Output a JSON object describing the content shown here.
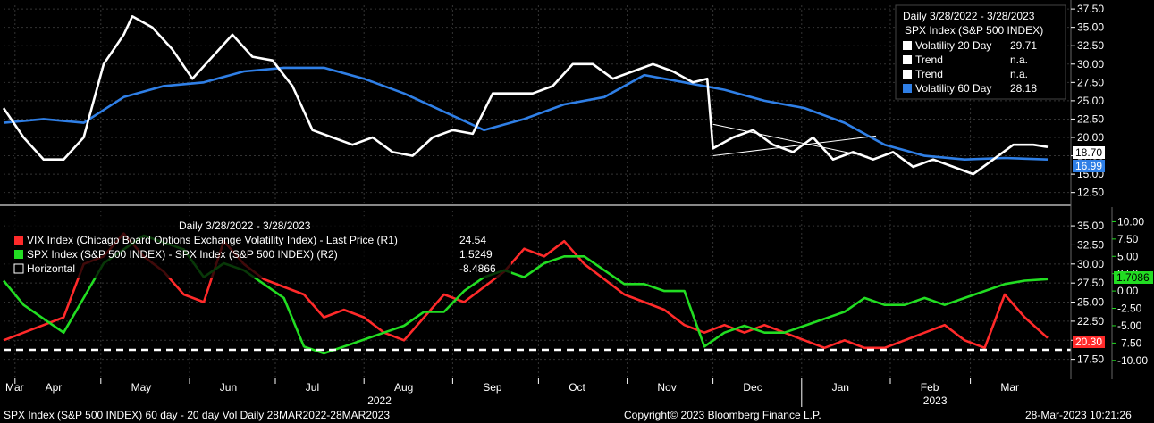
{
  "top_panel": {
    "legend": {
      "period": "Daily 3/28/2022 - 3/28/2023",
      "security": "SPX Index (S&P 500 INDEX)",
      "items": [
        {
          "label": "Volatility 20 Day",
          "value": "29.71",
          "color": "#ffffff"
        },
        {
          "label": "Trend",
          "value": "n.a.",
          "color": "#ffffff"
        },
        {
          "label": "Trend",
          "value": "n.a.",
          "color": "#ffffff"
        },
        {
          "label": "Volatility 60 Day",
          "value": "28.18",
          "color": "#2f7fe6"
        }
      ]
    },
    "last_labels": [
      {
        "text": "18.70",
        "color": "#ffffff"
      },
      {
        "text": "16.99",
        "color": "#2f7fe6"
      }
    ]
  },
  "bottom_panel": {
    "legend": {
      "period": "Daily 3/28/2022 - 3/28/2023",
      "items": [
        {
          "label": "VIX Index (Chicago Board Options Exchange Volatility Index) - Last Price (R1)",
          "value": "24.54",
          "color": "#ff2a2a"
        },
        {
          "label": "SPX Index (S&P 500 INDEX) - SPX Index (S&P 500 INDEX) (R2)",
          "value": "1.5249",
          "color": "#22dd22"
        },
        {
          "label": "Horizontal",
          "value": "-8.4866",
          "color": "#ffffff"
        }
      ]
    },
    "last_labels": [
      {
        "text": "1.7086",
        "color": "#22dd22"
      },
      {
        "text": "20.30",
        "color": "#ff2a2a"
      }
    ]
  },
  "x_axis": {
    "months": [
      "Mar",
      "Apr",
      "May",
      "Jun",
      "Jul",
      "Aug",
      "Sep",
      "Oct",
      "Nov",
      "Dec",
      "Jan",
      "Feb",
      "Mar"
    ],
    "years": [
      "2022",
      "2023"
    ]
  },
  "footer": {
    "left": "SPX Index (S&P 500 INDEX) 60 day - 20 day Vol  Daily 28MAR2022-28MAR2023",
    "center": "Copyright© 2023 Bloomberg Finance L.P.",
    "right": "28-Mar-2023 10:21:26"
  },
  "chart_data": [
    {
      "type": "line",
      "x_range": [
        "2022-03-28",
        "2023-03-28"
      ],
      "ylim": [
        11,
        38
      ],
      "yticks": [
        12.5,
        15,
        17.5,
        20,
        22.5,
        25,
        27.5,
        30,
        32.5,
        35,
        37.5
      ],
      "trendlines": [
        {
          "from": [
            "2022-12-01",
            17.5
          ],
          "to": [
            "2023-01-27",
            20.2
          ]
        },
        {
          "from": [
            "2022-12-01",
            21.8
          ],
          "to": [
            "2023-01-20",
            17.7
          ]
        }
      ],
      "series": [
        {
          "name": "Volatility 20 Day",
          "color": "#ffffff",
          "points": [
            [
              "2022-03-28",
              24
            ],
            [
              "2022-04-04",
              20
            ],
            [
              "2022-04-11",
              17
            ],
            [
              "2022-04-18",
              17
            ],
            [
              "2022-04-25",
              20
            ],
            [
              "2022-05-02",
              30
            ],
            [
              "2022-05-09",
              34
            ],
            [
              "2022-05-12",
              36.5
            ],
            [
              "2022-05-19",
              35
            ],
            [
              "2022-05-26",
              32
            ],
            [
              "2022-06-02",
              28
            ],
            [
              "2022-06-09",
              31
            ],
            [
              "2022-06-16",
              34
            ],
            [
              "2022-06-23",
              31
            ],
            [
              "2022-06-30",
              30.5
            ],
            [
              "2022-07-07",
              27
            ],
            [
              "2022-07-14",
              21
            ],
            [
              "2022-07-21",
              20
            ],
            [
              "2022-07-28",
              19
            ],
            [
              "2022-08-04",
              20
            ],
            [
              "2022-08-11",
              18
            ],
            [
              "2022-08-18",
              17.5
            ],
            [
              "2022-08-25",
              20
            ],
            [
              "2022-09-01",
              21
            ],
            [
              "2022-09-08",
              20.5
            ],
            [
              "2022-09-15",
              26
            ],
            [
              "2022-09-22",
              26
            ],
            [
              "2022-09-29",
              26
            ],
            [
              "2022-10-06",
              27
            ],
            [
              "2022-10-13",
              30
            ],
            [
              "2022-10-20",
              30
            ],
            [
              "2022-10-27",
              28
            ],
            [
              "2022-11-03",
              29
            ],
            [
              "2022-11-10",
              30
            ],
            [
              "2022-11-17",
              29
            ],
            [
              "2022-11-24",
              27.5
            ],
            [
              "2022-11-29",
              28
            ],
            [
              "2022-12-01",
              18.5
            ],
            [
              "2022-12-08",
              20
            ],
            [
              "2022-12-15",
              21
            ],
            [
              "2022-12-22",
              19
            ],
            [
              "2022-12-29",
              18
            ],
            [
              "2023-01-05",
              20
            ],
            [
              "2023-01-12",
              17
            ],
            [
              "2023-01-19",
              18
            ],
            [
              "2023-01-26",
              17
            ],
            [
              "2023-02-02",
              18
            ],
            [
              "2023-02-09",
              16
            ],
            [
              "2023-02-16",
              17
            ],
            [
              "2023-02-23",
              16
            ],
            [
              "2023-03-02",
              15
            ],
            [
              "2023-03-09",
              17
            ],
            [
              "2023-03-16",
              19
            ],
            [
              "2023-03-23",
              19
            ],
            [
              "2023-03-28",
              18.7
            ]
          ]
        },
        {
          "name": "Volatility 60 Day",
          "color": "#2f7fe6",
          "points": [
            [
              "2022-03-28",
              22
            ],
            [
              "2022-04-11",
              22.5
            ],
            [
              "2022-04-25",
              22
            ],
            [
              "2022-05-09",
              25.5
            ],
            [
              "2022-05-23",
              27
            ],
            [
              "2022-06-06",
              27.5
            ],
            [
              "2022-06-20",
              29
            ],
            [
              "2022-07-04",
              29.5
            ],
            [
              "2022-07-18",
              29.5
            ],
            [
              "2022-08-01",
              28
            ],
            [
              "2022-08-15",
              26
            ],
            [
              "2022-08-29",
              23.5
            ],
            [
              "2022-09-12",
              21
            ],
            [
              "2022-09-26",
              22.5
            ],
            [
              "2022-10-10",
              24.5
            ],
            [
              "2022-10-24",
              25.5
            ],
            [
              "2022-11-07",
              28.5
            ],
            [
              "2022-11-21",
              27.5
            ],
            [
              "2022-12-05",
              26.5
            ],
            [
              "2022-12-19",
              25
            ],
            [
              "2023-01-02",
              24
            ],
            [
              "2023-01-16",
              22
            ],
            [
              "2023-01-30",
              19
            ],
            [
              "2023-02-13",
              17.5
            ],
            [
              "2023-02-27",
              17
            ],
            [
              "2023-03-13",
              17.2
            ],
            [
              "2023-03-28",
              16.99
            ]
          ]
        }
      ]
    },
    {
      "type": "line",
      "x_range": [
        "2022-03-28",
        "2023-03-28"
      ],
      "ylim_left": [
        15,
        37
      ],
      "ylim_right": [
        -12.6,
        11.6
      ],
      "yticks_left": [
        17.5,
        20,
        22.5,
        25,
        27.5,
        30,
        32.5,
        35
      ],
      "yticks_right": [
        -10,
        -7.5,
        -5,
        -2.5,
        0,
        2.5,
        5,
        7.5,
        10
      ],
      "horizontal_line": {
        "axis": "right",
        "value": -8.4866
      },
      "series": [
        {
          "name": "VIX Index (Chicago Board Options Exchange Volatility Index) - Last Price (R1)",
          "axis": "left",
          "color": "#ff2a2a",
          "points": [
            [
              "2022-03-28",
              20
            ],
            [
              "2022-04-04",
              21
            ],
            [
              "2022-04-11",
              22
            ],
            [
              "2022-04-18",
              23
            ],
            [
              "2022-04-25",
              30
            ],
            [
              "2022-05-02",
              31
            ],
            [
              "2022-05-09",
              34
            ],
            [
              "2022-05-16",
              31
            ],
            [
              "2022-05-23",
              29
            ],
            [
              "2022-05-30",
              26
            ],
            [
              "2022-06-06",
              25
            ],
            [
              "2022-06-13",
              33
            ],
            [
              "2022-06-20",
              30
            ],
            [
              "2022-06-27",
              28
            ],
            [
              "2022-07-04",
              27
            ],
            [
              "2022-07-11",
              26
            ],
            [
              "2022-07-18",
              23
            ],
            [
              "2022-07-25",
              24
            ],
            [
              "2022-08-01",
              23
            ],
            [
              "2022-08-08",
              21
            ],
            [
              "2022-08-15",
              20
            ],
            [
              "2022-08-22",
              23
            ],
            [
              "2022-08-29",
              26
            ],
            [
              "2022-09-05",
              25
            ],
            [
              "2022-09-12",
              27
            ],
            [
              "2022-09-19",
              29
            ],
            [
              "2022-09-26",
              32
            ],
            [
              "2022-10-03",
              31
            ],
            [
              "2022-10-10",
              33
            ],
            [
              "2022-10-17",
              30
            ],
            [
              "2022-10-24",
              28
            ],
            [
              "2022-10-31",
              26
            ],
            [
              "2022-11-07",
              25
            ],
            [
              "2022-11-14",
              24
            ],
            [
              "2022-11-21",
              22
            ],
            [
              "2022-11-28",
              21
            ],
            [
              "2022-12-05",
              22
            ],
            [
              "2022-12-12",
              21
            ],
            [
              "2022-12-19",
              22
            ],
            [
              "2022-12-26",
              21
            ],
            [
              "2023-01-02",
              20
            ],
            [
              "2023-01-09",
              19
            ],
            [
              "2023-01-16",
              20
            ],
            [
              "2023-01-23",
              19
            ],
            [
              "2023-01-30",
              19
            ],
            [
              "2023-02-06",
              20
            ],
            [
              "2023-02-13",
              21
            ],
            [
              "2023-02-20",
              22
            ],
            [
              "2023-02-27",
              20
            ],
            [
              "2023-03-06",
              19
            ],
            [
              "2023-03-13",
              26
            ],
            [
              "2023-03-20",
              23
            ],
            [
              "2023-03-28",
              20.3
            ]
          ]
        },
        {
          "name": "SPX Index (S&P 500 INDEX) - SPX Index (S&P 500 INDEX) (R2)",
          "axis": "right",
          "color": "#22dd22",
          "points": [
            [
              "2022-03-28",
              1.5
            ],
            [
              "2022-04-04",
              -2
            ],
            [
              "2022-04-11",
              -4
            ],
            [
              "2022-04-18",
              -6
            ],
            [
              "2022-04-25",
              -1
            ],
            [
              "2022-05-02",
              4
            ],
            [
              "2022-05-09",
              6
            ],
            [
              "2022-05-16",
              8
            ],
            [
              "2022-05-23",
              7
            ],
            [
              "2022-05-30",
              6
            ],
            [
              "2022-06-06",
              2
            ],
            [
              "2022-06-13",
              4
            ],
            [
              "2022-06-20",
              3
            ],
            [
              "2022-06-27",
              1
            ],
            [
              "2022-07-04",
              -1
            ],
            [
              "2022-07-11",
              -8
            ],
            [
              "2022-07-18",
              -9
            ],
            [
              "2022-07-25",
              -8
            ],
            [
              "2022-08-01",
              -7
            ],
            [
              "2022-08-08",
              -6
            ],
            [
              "2022-08-15",
              -5
            ],
            [
              "2022-08-22",
              -3
            ],
            [
              "2022-08-29",
              -3
            ],
            [
              "2022-09-05",
              0
            ],
            [
              "2022-09-12",
              2
            ],
            [
              "2022-09-19",
              3
            ],
            [
              "2022-09-26",
              2
            ],
            [
              "2022-10-03",
              4
            ],
            [
              "2022-10-10",
              5
            ],
            [
              "2022-10-17",
              5
            ],
            [
              "2022-10-24",
              3
            ],
            [
              "2022-10-31",
              1
            ],
            [
              "2022-11-07",
              1
            ],
            [
              "2022-11-14",
              0
            ],
            [
              "2022-11-21",
              0
            ],
            [
              "2022-11-28",
              -8
            ],
            [
              "2022-12-05",
              -6
            ],
            [
              "2022-12-12",
              -5
            ],
            [
              "2022-12-19",
              -6
            ],
            [
              "2022-12-26",
              -6
            ],
            [
              "2023-01-02",
              -5
            ],
            [
              "2023-01-09",
              -4
            ],
            [
              "2023-01-16",
              -3
            ],
            [
              "2023-01-23",
              -1
            ],
            [
              "2023-01-30",
              -2
            ],
            [
              "2023-02-06",
              -2
            ],
            [
              "2023-02-13",
              -1
            ],
            [
              "2023-02-20",
              -2
            ],
            [
              "2023-02-27",
              -1
            ],
            [
              "2023-03-06",
              0
            ],
            [
              "2023-03-13",
              1
            ],
            [
              "2023-03-20",
              1.5
            ],
            [
              "2023-03-28",
              1.7086
            ]
          ]
        }
      ]
    }
  ]
}
